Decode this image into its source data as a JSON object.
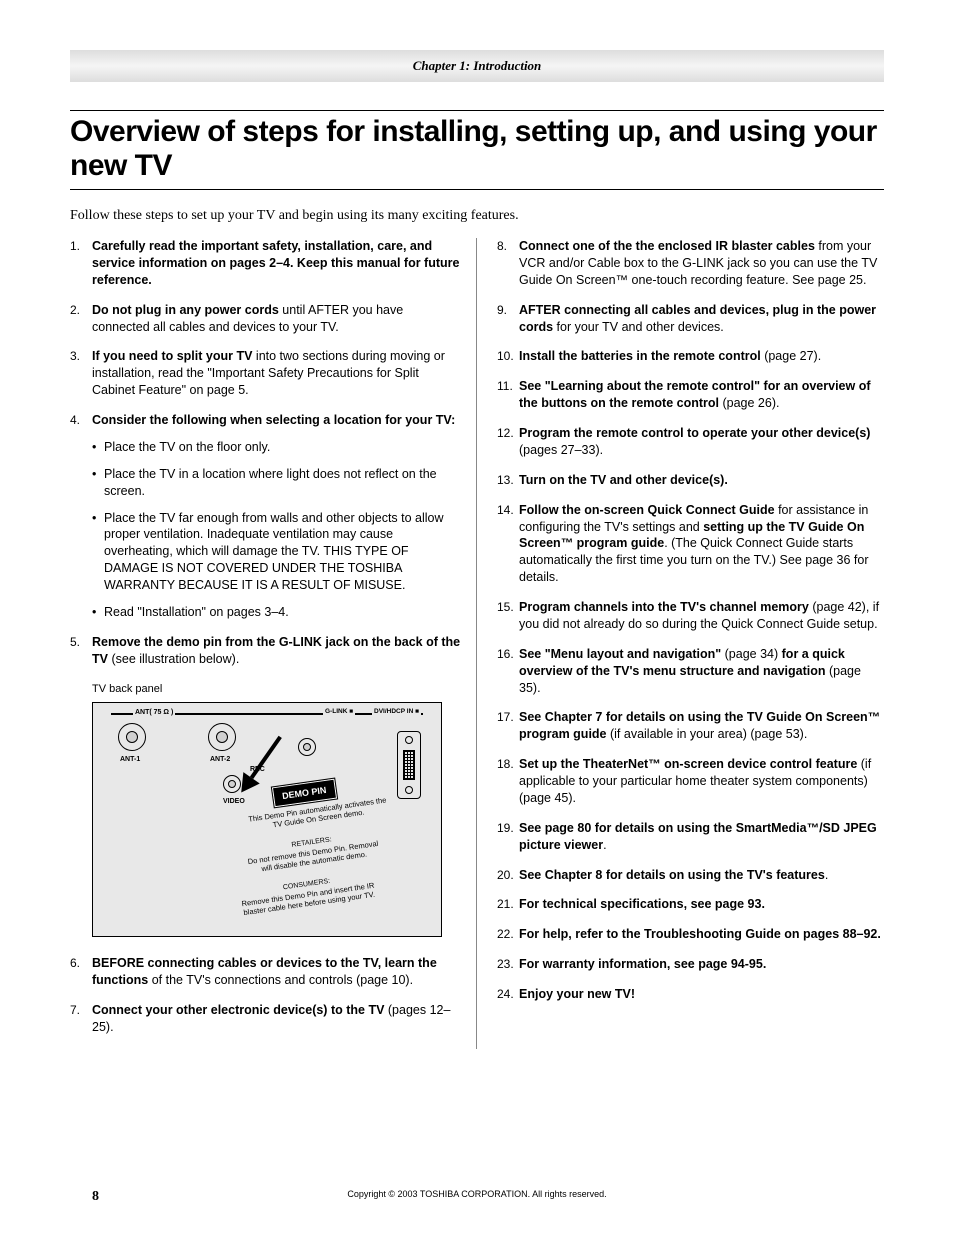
{
  "chapter_bar": "Chapter 1: Introduction",
  "title": "Overview of steps for installing, setting up, and using your new TV",
  "intro": "Follow these steps to set up your TV and begin using its many exciting features.",
  "panel_caption": "TV back panel",
  "panel": {
    "ant_line": "ANT( 75 Ω )",
    "glink": "G-LINK",
    "dvi": "DVI/HDCP IN",
    "ant1": "ANT-1",
    "ant2": "ANT-2",
    "rec": "REC",
    "video": "VIDEO",
    "tag": "DEMO PIN",
    "note1": "This Demo Pin automatically activates the TV Guide On Screen demo.",
    "note2_head": "RETAILERS:",
    "note2_body": "Do not remove this Demo Pin. Removal will disable the automatic demo.",
    "note3_head": "CONSUMERS:",
    "note3_body": "Remove this Demo Pin and insert the IR blaster cable here before using your TV."
  },
  "left": [
    {
      "n": "1.",
      "html": "<span class='b'>Carefully read the important safety, installation, care, and service information on pages 2–4. Keep this manual for future reference.</span>"
    },
    {
      "n": "2.",
      "html": "<span class='b'>Do not plug in any power cords</span> until AFTER you have connected all cables and devices to your TV."
    },
    {
      "n": "3.",
      "html": "<span class='b'>If you need to split your TV</span> into two sections during moving or installation, read the \"Important Safety Precautions for Split Cabinet Feature\" on page 5."
    },
    {
      "n": "4.",
      "html": "<span class='b'>Consider the following when selecting a location for your TV:</span>",
      "sub": [
        "Place the TV on the floor only.",
        "Place the TV in a location where light does not reflect on the screen.",
        "Place the TV far enough from walls and other objects to allow proper ventilation. Inadequate ventilation may cause overheating, which will damage the TV. THIS TYPE OF DAMAGE IS NOT COVERED UNDER THE TOSHIBA WARRANTY BECAUSE IT IS A RESULT OF MISUSE.",
        "Read \"Installation\" on pages 3–4."
      ]
    },
    {
      "n": "5.",
      "html": "<span class='b'>Remove the demo pin from the G-LINK jack on the back of the TV</span> (see illustration below)."
    },
    {
      "n": "6.",
      "html": "<span class='b'>BEFORE connecting cables or devices to the TV, learn the functions</span> of the TV's connections and controls (page 10)."
    },
    {
      "n": "7.",
      "html": "<span class='b'>Connect your other electronic device(s) to the TV</span> (pages 12–25)."
    }
  ],
  "right": [
    {
      "n": "8.",
      "html": "<span class='b'>Connect one of the the enclosed IR blaster cables</span> from your VCR and/or Cable box to the G-LINK jack so you can use the TV Guide On Screen™ one-touch recording feature. See page 25."
    },
    {
      "n": "9.",
      "html": "<span class='b'>AFTER connecting all cables and devices, plug in the power cords</span> for your TV and other devices."
    },
    {
      "n": "10.",
      "html": "<span class='b'>Install the batteries in the remote control</span> (page 27)."
    },
    {
      "n": "11.",
      "html": "<span class='b'>See \"Learning about the remote control\" for an overview of the buttons on the remote control</span> (page 26)."
    },
    {
      "n": "12.",
      "html": "<span class='b'>Program the remote control to operate your other device(s)</span> (pages 27–33)."
    },
    {
      "n": "13.",
      "html": "<span class='b'>Turn on the TV and other device(s).</span>"
    },
    {
      "n": "14.",
      "html": "<span class='b'>Follow the on-screen Quick Connect Guide</span> for assistance in configuring the TV's settings and <span class='b'>setting up the TV Guide On Screen™ program guide</span>. (The Quick Connect Guide starts automatically the first time you turn on the TV.) See page 36 for details."
    },
    {
      "n": "15.",
      "html": "<span class='b'>Program channels into the TV's channel memory</span> (page 42), if you did not already do so during the Quick Connect Guide setup."
    },
    {
      "n": "16.",
      "html": "<span class='b'>See \"Menu layout and navigation\"</span> (page 34) <span class='b'>for a quick overview of the TV's menu structure and navigation</span> (page 35)."
    },
    {
      "n": "17.",
      "html": "<span class='b'>See Chapter 7 for details on using the TV Guide On Screen™ program guide</span> (if available in your area) (page 53)."
    },
    {
      "n": "18.",
      "html": "<span class='b'>Set up the TheaterNet™ on-screen device control feature</span> (if applicable to your particular home theater system components) (page 45)."
    },
    {
      "n": "19.",
      "html": "<span class='b'>See page 80 for details on using the SmartMedia™/SD JPEG picture viewer</span>."
    },
    {
      "n": "20.",
      "html": "<span class='b'>See Chapter 8 for details on using the TV's features</span>."
    },
    {
      "n": "21.",
      "html": "<span class='b'>For technical specifications, see page 93.</span>"
    },
    {
      "n": "22.",
      "html": "<span class='b'>For help, refer to the Troubleshooting Guide on pages 88–92.</span>"
    },
    {
      "n": "23.",
      "html": "<span class='b'>For warranty information, see page 94-95.</span>"
    },
    {
      "n": "24.",
      "html": "<span class='b'>Enjoy your new TV!</span>"
    }
  ],
  "footer": "Copyright © 2003 TOSHIBA CORPORATION. All rights reserved.",
  "pagenum": "8"
}
